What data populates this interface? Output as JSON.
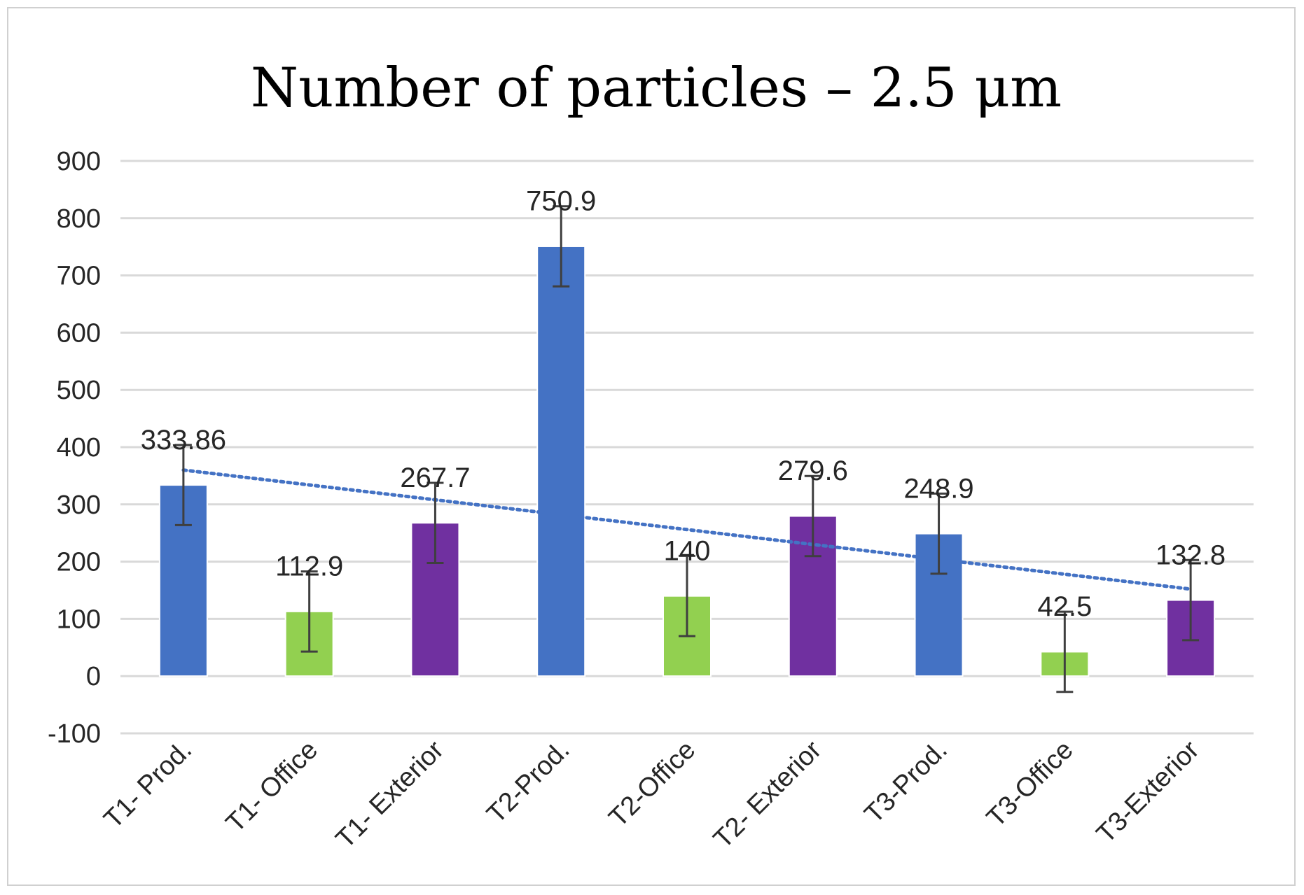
{
  "chart_data": {
    "type": "bar",
    "title": "Number of particles – 2.5 μm",
    "xlabel": "",
    "ylabel": "",
    "categories": [
      "T1- Prod.",
      "T1- Office",
      "T1- Exterior",
      "T2-Prod.",
      "T2-Office",
      "T2- Exterior",
      "T3-Prod.",
      "T3-Office",
      "T3-Exterior"
    ],
    "values": [
      333.86,
      112.9,
      267.7,
      750.9,
      140,
      279.6,
      248.9,
      42.5,
      132.8
    ],
    "data_labels": [
      "333.86",
      "112.9",
      "267.7",
      "750.9",
      "140",
      "279.6",
      "248.9",
      "42.5",
      "132.8"
    ],
    "error_bars": [
      70,
      70,
      70,
      70,
      70,
      70,
      70,
      70,
      70
    ],
    "bar_colors": [
      "#4472C4",
      "#92D050",
      "#7030A0",
      "#4472C4",
      "#92D050",
      "#7030A0",
      "#4472C4",
      "#92D050",
      "#7030A0"
    ],
    "ylim": [
      -100,
      900
    ],
    "yticks": [
      900,
      800,
      700,
      600,
      500,
      400,
      300,
      200,
      100,
      0,
      -100
    ],
    "grid": true,
    "trendline": {
      "type": "linear",
      "style": "dotted",
      "color": "#4472C4",
      "start": 360,
      "end": 152
    }
  }
}
